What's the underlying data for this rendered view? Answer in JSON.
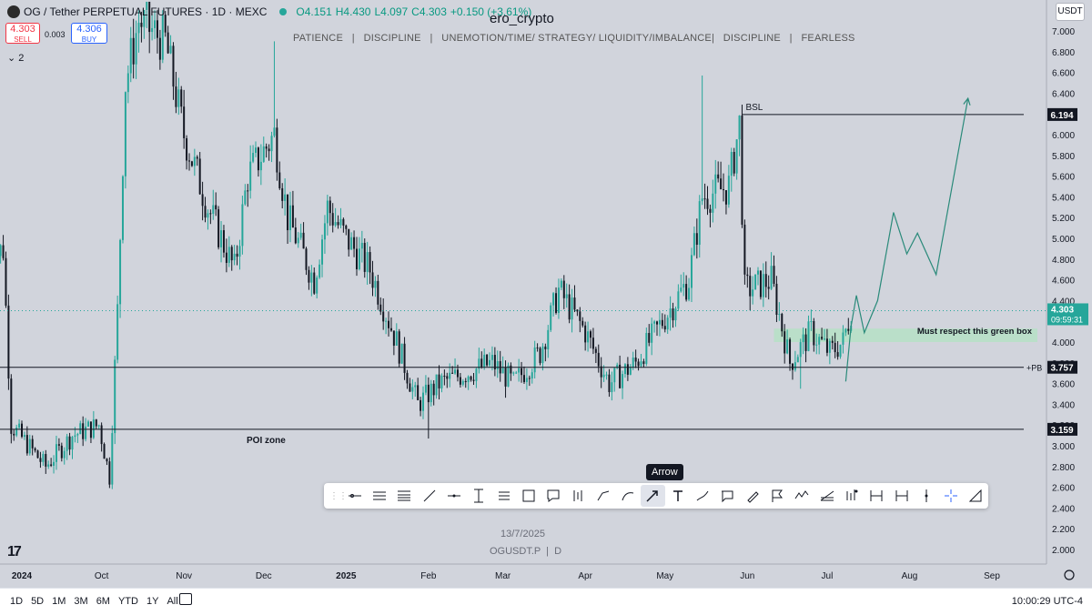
{
  "header": {
    "symbol_title": "OG / Tether PERPETUAL FUTURES · 1D · MEXC",
    "ohlc": {
      "o": "O4.151",
      "h": "H4.430",
      "l": "L4.097",
      "c": "C4.303",
      "chg": "+0.150 (+3.61%)"
    },
    "sell_price": "4.303",
    "sell_label": "SELL",
    "buy_price": "4.306",
    "buy_label": "BUY",
    "spread": "0.003",
    "indicator_count": "2"
  },
  "author": "ero_crypto",
  "motto": "PATIENCE   |   DISCIPLINE   |   UNEMOTION/TIME/ STRATEGY/ LIQUIDITY/IMBALANCE|   DISCIPLINE   |   FEARLESS",
  "currency_button": "USDT",
  "watermark_date": "13/7/2025",
  "watermark_symbol": "OGUSDT.P  |  D",
  "tooltip": "Arrow",
  "toolbar_icons": [
    "horizontal-ray-icon",
    "parallel-channel-icon",
    "fib-retracement-icon",
    "trend-line-icon",
    "horizontal-line-icon",
    "date-range-icon",
    "price-range-icon",
    "rectangle-icon",
    "callout-icon",
    "long-position-icon",
    "path-icon",
    "curve-icon",
    "arrow-icon",
    "text-icon",
    "brush-icon",
    "comment-icon",
    "pen-icon",
    "flag-icon",
    "elliott-wave-icon",
    "pitchfork-icon",
    "bars-pattern-icon",
    "projection-icon",
    "date-price-range-icon",
    "vertical-line-icon",
    "crosshair-icon",
    "ruler-icon"
  ],
  "bottom": {
    "ranges": [
      "1D",
      "5D",
      "1M",
      "3M",
      "6M",
      "YTD",
      "1Y",
      "All"
    ],
    "clock": "10:00:29 UTC-4"
  },
  "colors": {
    "up": "#26a69a",
    "down": "#131722",
    "zone": "#b6e0c6"
  },
  "chart_data": {
    "type": "candlestick",
    "ylim": [
      1.9,
      7.1
    ],
    "y_ticks": [
      "7.000",
      "6.800",
      "6.600",
      "6.400",
      "6.200",
      "6.000",
      "5.800",
      "5.600",
      "5.400",
      "5.200",
      "5.000",
      "4.800",
      "4.600",
      "4.400",
      "4.200",
      "4.000",
      "3.800",
      "3.600",
      "3.400",
      "3.200",
      "3.000",
      "2.800",
      "2.600",
      "2.400",
      "2.200",
      "2.000"
    ],
    "x_ticks": [
      {
        "label": "2024",
        "date": "2024-09-01"
      },
      {
        "label": "Oct",
        "date": "2024-10-01"
      },
      {
        "label": "Nov",
        "date": "2024-11-01"
      },
      {
        "label": "Dec",
        "date": "2024-12-01"
      },
      {
        "label": "2025",
        "date": "2025-01-01"
      },
      {
        "label": "Feb",
        "date": "2025-02-01"
      },
      {
        "label": "Mar",
        "date": "2025-03-01"
      },
      {
        "label": "Apr",
        "date": "2025-04-01"
      },
      {
        "label": "May",
        "date": "2025-05-01"
      },
      {
        "label": "Jun",
        "date": "2025-06-01"
      },
      {
        "label": "Jul",
        "date": "2025-07-01"
      },
      {
        "label": "Aug",
        "date": "2025-08-01"
      },
      {
        "label": "Sep",
        "date": "2025-09-01"
      }
    ],
    "price_path": [
      {
        "date": "2024-08-20",
        "close": 4.8
      },
      {
        "date": "2024-08-25",
        "close": 4.9
      },
      {
        "date": "2024-08-28",
        "close": 3.2
      },
      {
        "date": "2024-09-10",
        "close": 2.8
      },
      {
        "date": "2024-09-20",
        "close": 3.1
      },
      {
        "date": "2024-09-30",
        "close": 3.2
      },
      {
        "date": "2024-10-04",
        "close": 2.7
      },
      {
        "date": "2024-10-07",
        "close": 4.3
      },
      {
        "date": "2024-10-10",
        "close": 6.5
      },
      {
        "date": "2024-10-15",
        "close": 7.1
      },
      {
        "date": "2024-10-25",
        "close": 6.9
      },
      {
        "date": "2024-11-01",
        "close": 6.0
      },
      {
        "date": "2024-11-10",
        "close": 5.3
      },
      {
        "date": "2024-11-20",
        "close": 4.7
      },
      {
        "date": "2024-11-25",
        "close": 5.6
      },
      {
        "date": "2024-12-05",
        "close": 6.0
      },
      {
        "date": "2024-12-10",
        "close": 5.2
      },
      {
        "date": "2024-12-20",
        "close": 4.6
      },
      {
        "date": "2024-12-25",
        "close": 5.3
      },
      {
        "date": "2025-01-01",
        "close": 5.0
      },
      {
        "date": "2025-01-10",
        "close": 4.7
      },
      {
        "date": "2025-01-20",
        "close": 4.0
      },
      {
        "date": "2025-01-28",
        "close": 3.4
      },
      {
        "date": "2025-02-05",
        "close": 3.6
      },
      {
        "date": "2025-02-15",
        "close": 3.7
      },
      {
        "date": "2025-02-25",
        "close": 3.8
      },
      {
        "date": "2025-03-05",
        "close": 3.6
      },
      {
        "date": "2025-03-15",
        "close": 3.9
      },
      {
        "date": "2025-03-22",
        "close": 4.5
      },
      {
        "date": "2025-04-01",
        "close": 4.1
      },
      {
        "date": "2025-04-10",
        "close": 3.6
      },
      {
        "date": "2025-04-20",
        "close": 3.8
      },
      {
        "date": "2025-04-30",
        "close": 4.2
      },
      {
        "date": "2025-05-10",
        "close": 4.6
      },
      {
        "date": "2025-05-15",
        "close": 5.4
      },
      {
        "date": "2025-05-25",
        "close": 5.5
      },
      {
        "date": "2025-05-29",
        "close": 6.1
      },
      {
        "date": "2025-05-31",
        "close": 4.5
      },
      {
        "date": "2025-06-10",
        "close": 4.6
      },
      {
        "date": "2025-06-17",
        "close": 3.8
      },
      {
        "date": "2025-06-25",
        "close": 4.1
      },
      {
        "date": "2025-07-02",
        "close": 3.9
      },
      {
        "date": "2025-07-07",
        "close": 4.0
      },
      {
        "date": "2025-07-10",
        "close": 4.303
      }
    ],
    "wicks": [
      {
        "date": "2024-10-14",
        "high": 7.1
      },
      {
        "date": "2024-12-05",
        "high": 6.9
      },
      {
        "date": "2025-02-01",
        "low": 3.07
      },
      {
        "date": "2025-05-15",
        "high": 6.57
      },
      {
        "date": "2025-06-21",
        "low": 3.55
      }
    ],
    "levels": [
      {
        "label": "BSL",
        "price": 6.194,
        "tag": "6.194",
        "from": "2025-05-30"
      },
      {
        "label": "+PB",
        "price": 3.757,
        "tag": "3.757",
        "from": "2024-08-20"
      },
      {
        "label": "POI zone",
        "price": 3.159,
        "tag": "3.159",
        "from": "2024-08-20"
      }
    ],
    "last_price": {
      "price": 4.303,
      "tag": "4.303",
      "countdown": "09:59:31"
    },
    "zone": {
      "label": "Must respect this green box",
      "top": 4.13,
      "bottom": 4.0,
      "from": "2025-06-11",
      "to": "2025-07-20"
    },
    "projection": [
      {
        "date": "2025-07-08",
        "price": 3.62
      },
      {
        "date": "2025-07-10",
        "price": 4.15
      },
      {
        "date": "2025-07-12",
        "price": 4.45
      },
      {
        "date": "2025-07-15",
        "price": 4.09
      },
      {
        "date": "2025-07-20",
        "price": 4.4
      },
      {
        "date": "2025-07-26",
        "price": 5.25
      },
      {
        "date": "2025-07-31",
        "price": 4.85
      },
      {
        "date": "2025-08-04",
        "price": 5.05
      },
      {
        "date": "2025-08-11",
        "price": 4.65
      },
      {
        "date": "2025-08-23",
        "price": 6.35
      }
    ]
  }
}
